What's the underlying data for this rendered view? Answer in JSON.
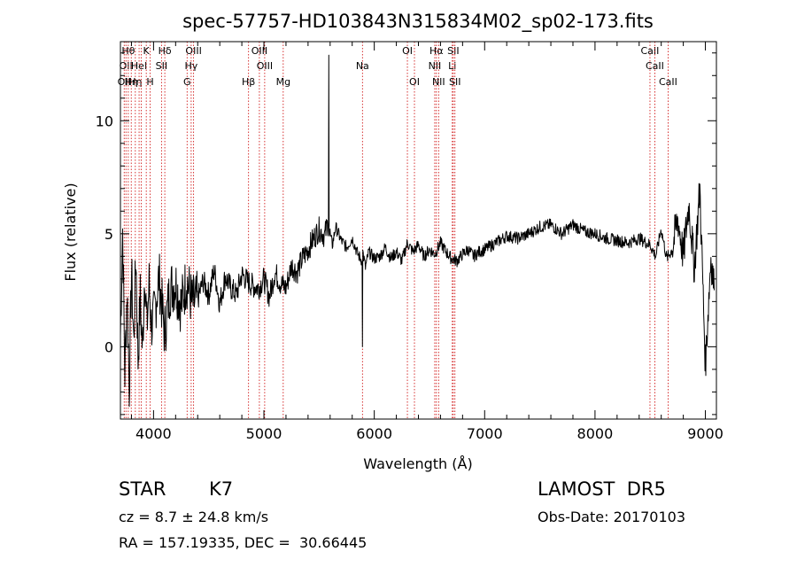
{
  "chart_data": {
    "type": "line",
    "title": "spec-57757-HD103843N315834M02_sp02-173.fits",
    "xlabel": "Wavelength (Å)",
    "ylabel": "Flux (relative)",
    "xlim": [
      3700,
      9100
    ],
    "ylim": [
      -3.2,
      13.5
    ],
    "xticks": [
      4000,
      5000,
      6000,
      7000,
      8000,
      9000
    ],
    "yticks": [
      0,
      5,
      10
    ],
    "grid": false,
    "series": [
      {
        "color": "#000000",
        "x": [
          3700,
          3720,
          3740,
          3760,
          3780,
          3800,
          3820,
          3840,
          3860,
          3880,
          3900,
          3920,
          3940,
          3960,
          3980,
          4000,
          4050,
          4100,
          4150,
          4200,
          4250,
          4300,
          4350,
          4400,
          4450,
          4500,
          4550,
          4600,
          4650,
          4700,
          4750,
          4800,
          4850,
          4900,
          4950,
          5000,
          5050,
          5100,
          5150,
          5200,
          5250,
          5300,
          5350,
          5400,
          5450,
          5500,
          5550,
          5585,
          5588,
          5591,
          5620,
          5650,
          5700,
          5750,
          5800,
          5850,
          5890,
          5893,
          5896,
          5920,
          5950,
          6000,
          6050,
          6100,
          6150,
          6200,
          6250,
          6300,
          6350,
          6400,
          6450,
          6500,
          6550,
          6600,
          6650,
          6700,
          6750,
          6800,
          6850,
          6900,
          6950,
          7000,
          7100,
          7200,
          7300,
          7400,
          7500,
          7600,
          7700,
          7800,
          7900,
          8000,
          8100,
          8200,
          8300,
          8400,
          8500,
          8550,
          8600,
          8650,
          8700,
          8750,
          8800,
          8850,
          8900,
          8950,
          9000,
          9050,
          9080
        ],
        "y": [
          0.5,
          5.2,
          -1.2,
          2.6,
          -1.8,
          3.3,
          0.2,
          4.1,
          -0.6,
          2.2,
          -0.3,
          3.5,
          0.8,
          2.8,
          1.0,
          1.2,
          3.1,
          0.6,
          2.6,
          2.8,
          1.8,
          3.0,
          1.9,
          2.1,
          2.9,
          2.3,
          3.4,
          1.9,
          3.1,
          2.6,
          2.3,
          3.2,
          2.9,
          2.7,
          2.6,
          3.0,
          2.2,
          3.3,
          2.8,
          2.6,
          3.6,
          3.3,
          3.9,
          4.3,
          4.8,
          5.2,
          4.9,
          5.6,
          12.9,
          5.1,
          4.5,
          5.3,
          4.7,
          4.4,
          4.8,
          4.1,
          3.8,
          0.0,
          4.2,
          3.5,
          4.2,
          3.9,
          4.0,
          4.4,
          3.9,
          4.2,
          3.8,
          4.6,
          4.2,
          4.5,
          4.0,
          4.3,
          4.1,
          4.6,
          4.2,
          3.9,
          3.8,
          4.1,
          4.3,
          4.0,
          4.2,
          4.3,
          4.6,
          4.9,
          4.8,
          5.0,
          5.3,
          5.4,
          5.0,
          5.4,
          5.1,
          5.0,
          4.8,
          4.7,
          4.6,
          4.8,
          4.5,
          4.0,
          5.2,
          3.9,
          4.3,
          5.7,
          4.0,
          6.3,
          3.5,
          7.0,
          -0.8,
          4.0,
          2.5
        ]
      }
    ],
    "lines": [
      {
        "wl": 3734,
        "label": "OII",
        "row": 2
      },
      {
        "wl": 3750,
        "label": "OII",
        "row": 1
      },
      {
        "wl": 3771,
        "label": "Hθ",
        "row": 0
      },
      {
        "wl": 3798,
        "label": "Hη",
        "row": 2
      },
      {
        "wl": 3835,
        "label": "Hη",
        "row": 2
      },
      {
        "wl": 3869,
        "label": "HeI",
        "row": 1
      },
      {
        "wl": 3889,
        "label": "",
        "row": -1
      },
      {
        "wl": 3934,
        "label": "K",
        "row": 0
      },
      {
        "wl": 3969,
        "label": "H",
        "row": 2
      },
      {
        "wl": 4072,
        "label": "SII",
        "row": 1
      },
      {
        "wl": 4102,
        "label": "Hδ",
        "row": 0
      },
      {
        "wl": 4304,
        "label": "G",
        "row": 2
      },
      {
        "wl": 4341,
        "label": "Hγ",
        "row": 1
      },
      {
        "wl": 4363,
        "label": "OIII",
        "row": 0
      },
      {
        "wl": 4861,
        "label": "Hβ",
        "row": 2
      },
      {
        "wl": 4959,
        "label": "OIII",
        "row": 0
      },
      {
        "wl": 5007,
        "label": "OIII",
        "row": 1
      },
      {
        "wl": 5175,
        "label": "Mg",
        "row": 2
      },
      {
        "wl": 5893,
        "label": "Na",
        "row": 1
      },
      {
        "wl": 6300,
        "label": "OI",
        "row": 0
      },
      {
        "wl": 6364,
        "label": "OI",
        "row": 2
      },
      {
        "wl": 6548,
        "label": "NII",
        "row": 1
      },
      {
        "wl": 6563,
        "label": "Hα",
        "row": 0
      },
      {
        "wl": 6583,
        "label": "NII",
        "row": 2
      },
      {
        "wl": 6707,
        "label": "Li",
        "row": 1
      },
      {
        "wl": 6716,
        "label": "SII",
        "row": 0
      },
      {
        "wl": 6731,
        "label": "SII",
        "row": 2
      },
      {
        "wl": 8498,
        "label": "CaII",
        "row": 0
      },
      {
        "wl": 8542,
        "label": "CaII",
        "row": 1
      },
      {
        "wl": 8662,
        "label": "CaII",
        "row": 2
      }
    ]
  },
  "info": {
    "class_label": "STAR",
    "subclass": "K7",
    "survey": "LAMOST  DR5",
    "cz": "cz = 8.7 ± 24.8 km/s",
    "obs_date": "Obs-Date: 20170103",
    "coords": "RA = 157.19335, DEC =  30.66445"
  },
  "colors": {
    "line_marker": "#cc0000",
    "spectrum": "#000000"
  }
}
